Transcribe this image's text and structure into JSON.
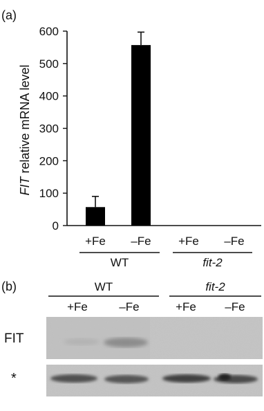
{
  "figure": {
    "panel_a_label": "(a)",
    "panel_b_label": "(b)"
  },
  "chart_data": {
    "type": "bar",
    "ylabel_italic": "FIT",
    "ylabel_rest": " relative mRNA level",
    "ylim": [
      0,
      600
    ],
    "yticks": [
      0,
      100,
      200,
      300,
      400,
      500,
      600
    ],
    "categories": [
      "+Fe",
      "–Fe",
      "+Fe",
      "–Fe"
    ],
    "groups": [
      {
        "label": "WT",
        "italic": false
      },
      {
        "label": "fit-2",
        "italic": true
      }
    ],
    "values": [
      57,
      557,
      0,
      0
    ],
    "error_plus": [
      33,
      40,
      0,
      0
    ],
    "bar_color": "#000000"
  },
  "blot": {
    "groups": [
      {
        "label": "WT",
        "italic": false
      },
      {
        "label": "fit-2",
        "italic": true
      }
    ],
    "lanes": [
      "+Fe",
      "–Fe",
      "+Fe",
      "–Fe"
    ],
    "rows": [
      {
        "label": "FIT"
      },
      {
        "label": "*"
      }
    ]
  }
}
